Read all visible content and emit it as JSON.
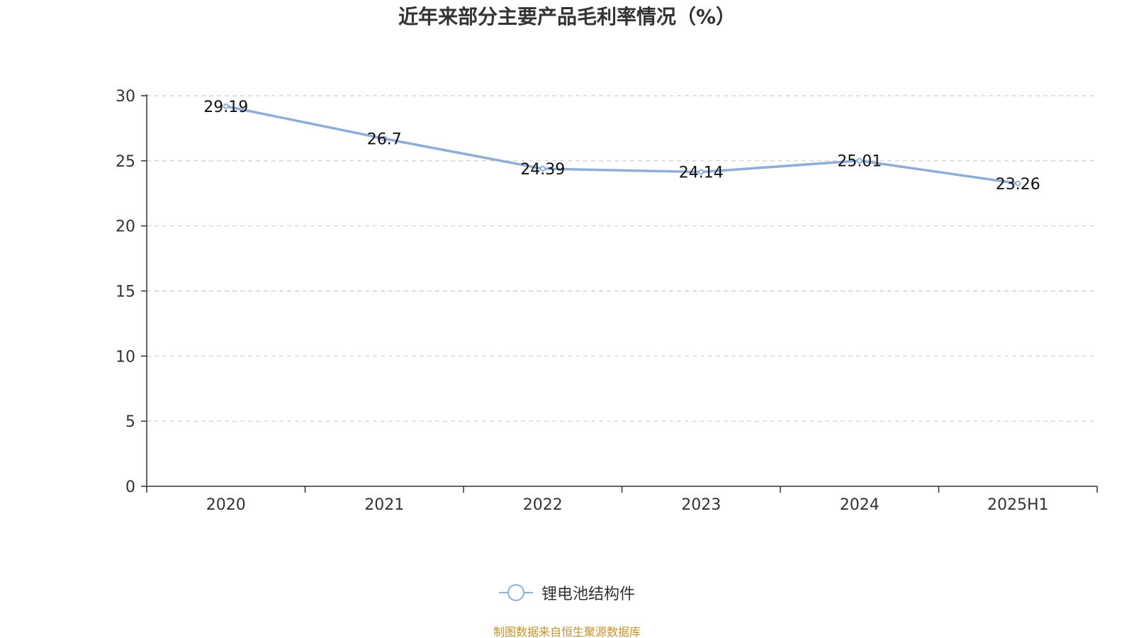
{
  "title": "近年来部分主要产品毛利率情况（%）",
  "source": "制图数据来自恒生聚源数据库",
  "colors": {
    "series": "#8fadd9",
    "axis": "#333333",
    "grid": "#cccccc",
    "source": "#c8922a",
    "text": "#333333"
  },
  "chart_data": {
    "type": "line",
    "title": "近年来部分主要产品毛利率情况（%）",
    "xlabel": "",
    "ylabel": "",
    "categories": [
      "2020",
      "2021",
      "2022",
      "2023",
      "2024",
      "2025H1"
    ],
    "series": [
      {
        "name": "锂电池结构件",
        "values": [
          29.19,
          26.7,
          24.39,
          24.14,
          25.01,
          23.26
        ],
        "labels": [
          "29.19",
          "26.7",
          "24.39",
          "24.14",
          "25.01",
          "23.26"
        ]
      }
    ],
    "ylim": [
      0,
      30
    ],
    "yticks": [
      0,
      5,
      10,
      15,
      20,
      25,
      30
    ],
    "grid": true,
    "legend": "bottom-center"
  }
}
